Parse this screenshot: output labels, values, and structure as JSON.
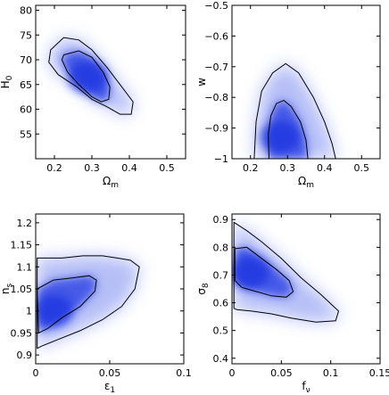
{
  "chart_data": [
    {
      "type": "contour",
      "xlabel": "Ω",
      "xlabel_sub": "m",
      "ylabel": "H",
      "ylabel_sub": "0",
      "xlim": [
        0.15,
        0.55
      ],
      "ylim": [
        50,
        81
      ],
      "xticks": [
        0.2,
        0.3,
        0.4,
        0.5
      ],
      "xticklabels": [
        "0.2",
        "0.3",
        "0.4",
        "0.5"
      ],
      "yticks": [
        55,
        60,
        65,
        70,
        75,
        80
      ],
      "yticklabels": [
        "55",
        "60",
        "65",
        "70",
        "75",
        "80"
      ],
      "density_center": [
        0.29,
        66.5
      ],
      "contour_inner": [
        [
          0.225,
          71.0
        ],
        [
          0.265,
          71.8
        ],
        [
          0.3,
          70.5
        ],
        [
          0.33,
          67.5
        ],
        [
          0.348,
          64.5
        ],
        [
          0.345,
          62.0
        ],
        [
          0.325,
          61.5
        ],
        [
          0.3,
          62.5
        ],
        [
          0.265,
          65.0
        ],
        [
          0.235,
          67.5
        ],
        [
          0.22,
          70.0
        ]
      ],
      "contour_outer": [
        [
          0.19,
          72.0
        ],
        [
          0.225,
          74.5
        ],
        [
          0.265,
          74.0
        ],
        [
          0.3,
          72.0
        ],
        [
          0.34,
          68.5
        ],
        [
          0.375,
          65.0
        ],
        [
          0.41,
          61.5
        ],
        [
          0.405,
          59.0
        ],
        [
          0.375,
          59.0
        ],
        [
          0.34,
          60.5
        ],
        [
          0.3,
          62.0
        ],
        [
          0.26,
          64.5
        ],
        [
          0.21,
          67.0
        ],
        [
          0.185,
          69.5
        ]
      ]
    },
    {
      "type": "contour",
      "xlabel": "Ω",
      "xlabel_sub": "m",
      "ylabel": "w",
      "ylabel_sub": "",
      "xlim": [
        0.15,
        0.55
      ],
      "ylim": [
        -1.0,
        -0.5
      ],
      "xticks": [
        0.2,
        0.3,
        0.4,
        0.5
      ],
      "xticklabels": [
        "0.2",
        "0.3",
        "0.4",
        "0.5"
      ],
      "yticks": [
        -1.0,
        -0.9,
        -0.8,
        -0.7,
        -0.6,
        -0.5
      ],
      "yticklabels": [
        "−1",
        "−0.9",
        "−0.8",
        "−0.7",
        "−0.6",
        "−0.5"
      ],
      "density_center": [
        0.28,
        -0.93
      ],
      "contour_inner": [
        [
          0.25,
          -1.0
        ],
        [
          0.248,
          -0.92
        ],
        [
          0.255,
          -0.86
        ],
        [
          0.27,
          -0.82
        ],
        [
          0.29,
          -0.81
        ],
        [
          0.31,
          -0.83
        ],
        [
          0.335,
          -0.88
        ],
        [
          0.35,
          -0.94
        ],
        [
          0.355,
          -1.0
        ]
      ],
      "contour_outer": [
        [
          0.21,
          -1.0
        ],
        [
          0.215,
          -0.88
        ],
        [
          0.23,
          -0.78
        ],
        [
          0.26,
          -0.72
        ],
        [
          0.295,
          -0.69
        ],
        [
          0.33,
          -0.72
        ],
        [
          0.37,
          -0.8
        ],
        [
          0.4,
          -0.88
        ],
        [
          0.42,
          -0.95
        ],
        [
          0.43,
          -1.0
        ]
      ]
    },
    {
      "type": "contour",
      "xlabel": "ε",
      "xlabel_sub": "1",
      "ylabel": "n",
      "ylabel_sub": "s",
      "xlim": [
        0,
        0.1
      ],
      "ylim": [
        0.88,
        1.22
      ],
      "xticks": [
        0,
        0.05,
        0.1
      ],
      "xticklabels": [
        "0",
        "0.05",
        "0.1"
      ],
      "yticks": [
        0.9,
        0.95,
        1.0,
        1.05,
        1.1,
        1.15,
        1.2
      ],
      "yticklabels": [
        "0.9",
        "0.95",
        "1",
        "1.05",
        "1.1",
        "1.15",
        "1.2"
      ],
      "density_center": [
        0.012,
        1.0
      ],
      "contour_inner": [
        [
          0.001,
          1.05
        ],
        [
          0.012,
          1.07
        ],
        [
          0.025,
          1.075
        ],
        [
          0.036,
          1.08
        ],
        [
          0.041,
          1.07
        ],
        [
          0.04,
          1.045
        ],
        [
          0.03,
          1.01
        ],
        [
          0.018,
          0.985
        ],
        [
          0.008,
          0.96
        ],
        [
          0.002,
          0.95
        ]
      ],
      "contour_outer": [
        [
          0.001,
          1.12
        ],
        [
          0.018,
          1.12
        ],
        [
          0.032,
          1.125
        ],
        [
          0.045,
          1.125
        ],
        [
          0.055,
          1.12
        ],
        [
          0.064,
          1.115
        ],
        [
          0.07,
          1.1
        ],
        [
          0.067,
          1.05
        ],
        [
          0.058,
          1.01
        ],
        [
          0.045,
          0.98
        ],
        [
          0.03,
          0.955
        ],
        [
          0.015,
          0.935
        ],
        [
          0.004,
          0.92
        ],
        [
          0.001,
          0.915
        ]
      ]
    },
    {
      "type": "contour",
      "xlabel": "f",
      "xlabel_sub": "ν",
      "ylabel": "σ",
      "ylabel_sub": "8",
      "xlim": [
        0,
        0.15
      ],
      "ylim": [
        0.38,
        0.92
      ],
      "xticks": [
        0,
        0.05,
        0.1,
        0.15
      ],
      "xticklabels": [
        "0",
        "0.05",
        "0.1",
        "0.15"
      ],
      "yticks": [
        0.4,
        0.5,
        0.6,
        0.7,
        0.8,
        0.9
      ],
      "yticklabels": [
        "0.4",
        "0.5",
        "0.6",
        "0.7",
        "0.8",
        "0.9"
      ],
      "density_center": [
        0.018,
        0.71
      ],
      "contour_inner": [
        [
          0.003,
          0.795
        ],
        [
          0.015,
          0.8
        ],
        [
          0.03,
          0.76
        ],
        [
          0.045,
          0.72
        ],
        [
          0.058,
          0.68
        ],
        [
          0.062,
          0.64
        ],
        [
          0.055,
          0.62
        ],
        [
          0.04,
          0.625
        ],
        [
          0.025,
          0.64
        ],
        [
          0.01,
          0.655
        ],
        [
          0.003,
          0.68
        ]
      ],
      "contour_outer": [
        [
          0.002,
          0.89
        ],
        [
          0.015,
          0.86
        ],
        [
          0.03,
          0.82
        ],
        [
          0.05,
          0.76
        ],
        [
          0.07,
          0.69
        ],
        [
          0.09,
          0.63
        ],
        [
          0.108,
          0.57
        ],
        [
          0.105,
          0.535
        ],
        [
          0.085,
          0.53
        ],
        [
          0.06,
          0.545
        ],
        [
          0.04,
          0.56
        ],
        [
          0.02,
          0.57
        ],
        [
          0.005,
          0.575
        ],
        [
          0.002,
          0.58
        ]
      ]
    }
  ]
}
